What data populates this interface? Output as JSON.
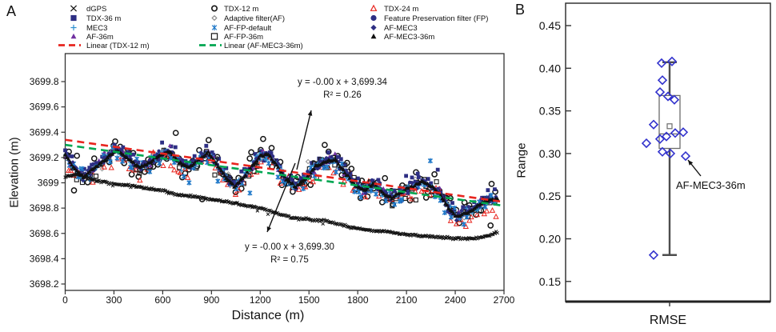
{
  "figure": {
    "panel_a_label": "A",
    "panel_b_label": "B"
  },
  "panel_a": {
    "xlabel": "Distance (m)",
    "ylabel": "Elevation (m)",
    "annotations": [
      {
        "line1": "y = -0.00 x + 3,699.34",
        "line2": "R² = 0.26"
      },
      {
        "line1": "y = -0.00 x + 3,699.30",
        "line2": "R² = 0.75"
      }
    ]
  },
  "panel_b": {
    "xlabel": "RMSE",
    "ylabel": "Range",
    "annotation_label": "AF-MEC3-36m"
  },
  "legend": {
    "columns": [
      [
        {
          "label": "dGPS",
          "marker": "x",
          "color": "#141414"
        },
        {
          "label": "TDX-36 m",
          "marker": "square",
          "color": "#2d2e83"
        },
        {
          "label": "MEC3",
          "marker": "plus",
          "color": "#2e90d0"
        },
        {
          "label": "AF-36m",
          "marker": "triangle",
          "color": "#7030a0"
        },
        {
          "label": "Linear (TDX-12 m)",
          "marker": "dash",
          "color": "#e8251f"
        }
      ],
      [
        {
          "label": "TDX-12 m",
          "marker": "circle-open",
          "color": "#141414"
        },
        {
          "label": "Adaptive filter(AF)",
          "marker": "diamond-open",
          "color": "#8a8a8a"
        },
        {
          "label": "AF-FP-default",
          "marker": "asterisk",
          "color": "#1f78c8"
        },
        {
          "label": "AF-FP-36m",
          "marker": "square-open",
          "color": "#1c1c1c"
        },
        {
          "label": "Linear (AF-MEC3-36m)",
          "marker": "dash",
          "color": "#00a651"
        }
      ],
      [
        {
          "label": "TDX-24 m",
          "marker": "triangle-open",
          "color": "#e8251f"
        },
        {
          "label": "Feature Preservation filter (FP)",
          "marker": "circle",
          "color": "#2d2e83"
        },
        {
          "label": "AF-MEC3",
          "marker": "diamond",
          "color": "#2d2e83"
        },
        {
          "label": "AF-MEC3-36m",
          "marker": "triangle",
          "color": "#101010"
        }
      ]
    ]
  },
  "chart_data": [
    {
      "type": "scatter",
      "panel": "A",
      "xlabel": "Distance (m)",
      "ylabel": "Elevation (m)",
      "xlim": [
        0,
        2700
      ],
      "ylim": [
        3698.15,
        3700.0
      ],
      "x_ticks": [
        0,
        300,
        600,
        900,
        1200,
        1500,
        1800,
        2100,
        2400,
        2700
      ],
      "y_ticks": [
        3699.8,
        3699.6,
        3699.4,
        3699.2,
        3699,
        3698.8,
        3698.6,
        3698.4,
        3698.2
      ],
      "y_tick_labels": [
        "3699.8",
        "3699.6",
        "3699.4",
        "3699.2",
        "3699",
        "3698.8",
        "3698.6",
        "3698.4",
        "3698.2"
      ],
      "grid": false,
      "profiles": {
        "band": [
          [
            0,
            3699.22
          ],
          [
            50,
            3699.13
          ],
          [
            110,
            3699.04
          ],
          [
            160,
            3699.1
          ],
          [
            240,
            3699.18
          ],
          [
            315,
            3699.26
          ],
          [
            390,
            3699.19
          ],
          [
            460,
            3699.12
          ],
          [
            520,
            3699.16
          ],
          [
            580,
            3699.22
          ],
          [
            640,
            3699.25
          ],
          [
            700,
            3699.16
          ],
          [
            760,
            3699.12
          ],
          [
            820,
            3699.18
          ],
          [
            880,
            3699.24
          ],
          [
            930,
            3699.15
          ],
          [
            990,
            3699.04
          ],
          [
            1040,
            3698.97
          ],
          [
            1090,
            3699.03
          ],
          [
            1140,
            3699.12
          ],
          [
            1200,
            3699.21
          ],
          [
            1250,
            3699.23
          ],
          [
            1310,
            3699.12
          ],
          [
            1360,
            3699.03
          ],
          [
            1420,
            3698.97
          ],
          [
            1480,
            3699.03
          ],
          [
            1540,
            3699.13
          ],
          [
            1600,
            3699.17
          ],
          [
            1660,
            3699.18
          ],
          [
            1720,
            3699.08
          ],
          [
            1780,
            3698.99
          ],
          [
            1840,
            3698.94
          ],
          [
            1900,
            3698.99
          ],
          [
            1960,
            3698.92
          ],
          [
            2010,
            3698.88
          ],
          [
            2070,
            3698.93
          ],
          [
            2130,
            3698.97
          ],
          [
            2200,
            3699.01
          ],
          [
            2260,
            3698.97
          ],
          [
            2310,
            3698.9
          ],
          [
            2360,
            3698.8
          ],
          [
            2410,
            3698.73
          ],
          [
            2460,
            3698.76
          ],
          [
            2510,
            3698.79
          ],
          [
            2560,
            3698.84
          ],
          [
            2620,
            3698.87
          ]
        ],
        "dgps": [
          [
            0,
            3699.05
          ],
          [
            80,
            3699.07
          ],
          [
            150,
            3699.03
          ],
          [
            300,
            3698.99
          ],
          [
            450,
            3698.97
          ],
          [
            600,
            3698.94
          ],
          [
            700,
            3698.9
          ],
          [
            800,
            3698.89
          ],
          [
            900,
            3698.87
          ],
          [
            1000,
            3698.85
          ],
          [
            1100,
            3698.82
          ],
          [
            1200,
            3698.8
          ],
          [
            1300,
            3698.76
          ],
          [
            1400,
            3698.72
          ],
          [
            1500,
            3698.71
          ],
          [
            1600,
            3698.7
          ],
          [
            1700,
            3698.67
          ],
          [
            1800,
            3698.64
          ],
          [
            1900,
            3698.62
          ],
          [
            2000,
            3698.61
          ],
          [
            2100,
            3698.59
          ],
          [
            2200,
            3698.58
          ],
          [
            2300,
            3698.57
          ],
          [
            2400,
            3698.56
          ],
          [
            2500,
            3698.56
          ],
          [
            2600,
            3698.58
          ],
          [
            2660,
            3698.61
          ]
        ]
      },
      "series": [
        {
          "name": "Adaptive filter(AF)",
          "marker": "diamond-open",
          "color": "#8a8a8a",
          "profile": "band",
          "mode": "random",
          "count": 40,
          "amp": 0.07,
          "bias": 0,
          "outlier_frac": 0.05,
          "outlier_scale": 2.0,
          "size": 2.6,
          "sw": 0.9
        },
        {
          "name": "TDX-12 m",
          "marker": "circle-open",
          "color": "#141414",
          "profile": "band",
          "mode": "random",
          "count": 140,
          "amp": 0.17,
          "bias": 0.01,
          "outlier_frac": 0.12,
          "outlier_scale": 2.4,
          "size": 3.1,
          "sw": 1.5
        },
        {
          "name": "TDX-24 m",
          "marker": "triangle-open",
          "color": "#e8251f",
          "profile": "band",
          "mode": "random",
          "count": 110,
          "amp": 0.12,
          "bias": -0.04,
          "outlier_frac": 0.06,
          "outlier_scale": 1.8,
          "size": 3.0,
          "sw": 1.0
        },
        {
          "name": "TDX-36 m",
          "marker": "square",
          "color": "#2d2e83",
          "profile": "band",
          "mode": "random",
          "count": 120,
          "amp": 0.1,
          "bias": 0.03,
          "outlier_frac": 0.07,
          "outlier_scale": 2.0,
          "size": 2.4,
          "sw": 0
        },
        {
          "name": "AF-FP-36m",
          "marker": "square-open",
          "color": "#1c1c1c",
          "profile": "band",
          "mode": "random",
          "count": 95,
          "amp": 0.09,
          "bias": -0.01,
          "outlier_frac": 0.05,
          "outlier_scale": 1.8,
          "size": 2.5,
          "sw": 1.1
        },
        {
          "name": "AF-FP-default",
          "marker": "asterisk",
          "color": "#1f78c8",
          "profile": "band",
          "mode": "random",
          "count": 85,
          "amp": 0.11,
          "bias": -0.03,
          "outlier_frac": 0.08,
          "outlier_scale": 2.0,
          "size": 3.2,
          "sw": 1.5
        },
        {
          "name": "AF-36m",
          "marker": "triangle",
          "color": "#7030a0",
          "profile": "band",
          "mode": "random",
          "count": 100,
          "amp": 0.07,
          "bias": 0.01,
          "outlier_frac": 0.04,
          "outlier_scale": 1.8,
          "size": 2.6,
          "sw": 0
        },
        {
          "name": "MEC3",
          "marker": "plus",
          "color": "#2e90d0",
          "profile": "band",
          "mode": "random",
          "count": 200,
          "amp": 0.05,
          "bias": 0,
          "outlier_frac": 0.04,
          "outlier_scale": 2.2,
          "size": 2.8,
          "sw": 1.2
        },
        {
          "name": "Feature Preservation filter (FP)",
          "marker": "circle",
          "color": "#2d2e83",
          "profile": "band",
          "mode": "random",
          "count": 130,
          "amp": 0.05,
          "bias": 0.01,
          "outlier_frac": 0.03,
          "outlier_scale": 2.0,
          "size": 2.2,
          "sw": 0
        },
        {
          "name": "AF-MEC3",
          "marker": "diamond",
          "color": "#2d2e83",
          "profile": "band",
          "mode": "random",
          "count": 130,
          "amp": 0.05,
          "bias": 0,
          "outlier_frac": 0.03,
          "outlier_scale": 2.0,
          "size": 2.6,
          "sw": 0
        },
        {
          "name": "dGPS",
          "marker": "x",
          "color": "#141414",
          "profile": "dgps",
          "mode": "step",
          "step": 6.5,
          "amp": 0.013,
          "bias": 0,
          "outlier_frac": 0.02,
          "outlier_scale": 5.0,
          "size": 1.9,
          "sw": 1.0
        },
        {
          "name": "AF-MEC3-36m",
          "marker": "triangle",
          "color": "#101010",
          "profile": "band",
          "mode": "step",
          "step": 10,
          "amp": 0.013,
          "bias": 0,
          "outlier_frac": 0,
          "outlier_scale": 1,
          "size": 2.7,
          "sw": 0
        }
      ],
      "trendlines": [
        {
          "label": "Linear (TDX-12 m)",
          "color": "#e8251f",
          "dash": [
            9,
            6
          ],
          "width": 2.6,
          "points": [
            [
              0,
              3699.34
            ],
            [
              2700,
              3698.85
            ]
          ],
          "equation": "y = -0.00 x + 3,699.34",
          "r2": 0.26
        },
        {
          "label": "Linear (AF-MEC3-36m)",
          "color": "#00a651",
          "dash": [
            9,
            6
          ],
          "width": 2.6,
          "points": [
            [
              0,
              3699.3
            ],
            [
              2700,
              3698.82
            ]
          ],
          "equation": "y = -0.00 x + 3,699.30",
          "r2": 0.75
        }
      ],
      "arrows": [
        {
          "from": [
            371,
            212
          ],
          "to": [
            389,
            138
          ]
        },
        {
          "from": [
            369,
            204
          ],
          "to": [
            334,
            290
          ]
        }
      ]
    },
    {
      "type": "box-scatter",
      "panel": "B",
      "xlabel": "RMSE",
      "ylabel": "Range",
      "ylim": [
        0.125,
        0.475
      ],
      "y_ticks": [
        0.45,
        0.4,
        0.35,
        0.3,
        0.25,
        0.2,
        0.15
      ],
      "y_tick_labels": [
        "0.45",
        "0.40",
        "0.35",
        "0.30",
        "0.25",
        "0.20",
        "0.15"
      ],
      "box": {
        "q1": 0.306,
        "q3": 0.368,
        "median": 0.323,
        "mean": 0.332,
        "whisker_low": 0.181,
        "whisker_high": 0.407
      },
      "marker": {
        "shape": "diamond-open",
        "color": "#3232cd"
      },
      "points": [
        {
          "offset": -10,
          "value": 0.406
        },
        {
          "offset": 3,
          "value": 0.408
        },
        {
          "offset": -9,
          "value": 0.386
        },
        {
          "offset": -12,
          "value": 0.372
        },
        {
          "offset": -2,
          "value": 0.367
        },
        {
          "offset": 6,
          "value": 0.363
        },
        {
          "offset": -20,
          "value": 0.334
        },
        {
          "offset": 17,
          "value": 0.325
        },
        {
          "offset": 7,
          "value": 0.324
        },
        {
          "offset": -4,
          "value": 0.32
        },
        {
          "offset": -12,
          "value": 0.317
        },
        {
          "offset": -29,
          "value": 0.312
        },
        {
          "offset": -9,
          "value": 0.302
        },
        {
          "offset": 1,
          "value": 0.3
        },
        {
          "offset": 20,
          "value": 0.297
        },
        {
          "offset": -20,
          "value": 0.181
        }
      ],
      "annotation": {
        "label": "AF-MEC3-36m",
        "target_value": 0.297,
        "arrow_from": [
          876,
          220
        ],
        "arrow_to": [
          860,
          200
        ]
      }
    }
  ]
}
